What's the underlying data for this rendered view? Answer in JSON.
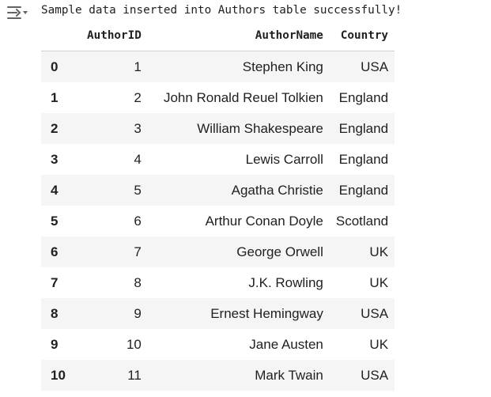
{
  "output": {
    "icon": "output-collapse-icon",
    "message": "Sample data inserted into Authors table successfully!"
  },
  "table": {
    "columns": [
      "AuthorID",
      "AuthorName",
      "Country"
    ],
    "rows": [
      {
        "index": "0",
        "AuthorID": "1",
        "AuthorName": "Stephen King",
        "Country": "USA"
      },
      {
        "index": "1",
        "AuthorID": "2",
        "AuthorName": "John Ronald Reuel Tolkien",
        "Country": "England"
      },
      {
        "index": "2",
        "AuthorID": "3",
        "AuthorName": "William Shakespeare",
        "Country": "England"
      },
      {
        "index": "3",
        "AuthorID": "4",
        "AuthorName": "Lewis Carroll",
        "Country": "England"
      },
      {
        "index": "4",
        "AuthorID": "5",
        "AuthorName": "Agatha Christie",
        "Country": "England"
      },
      {
        "index": "5",
        "AuthorID": "6",
        "AuthorName": "Arthur Conan Doyle",
        "Country": "Scotland"
      },
      {
        "index": "6",
        "AuthorID": "7",
        "AuthorName": "George Orwell",
        "Country": "UK"
      },
      {
        "index": "7",
        "AuthorID": "8",
        "AuthorName": "J.K. Rowling",
        "Country": "UK"
      },
      {
        "index": "8",
        "AuthorID": "9",
        "AuthorName": "Ernest Hemingway",
        "Country": "USA"
      },
      {
        "index": "9",
        "AuthorID": "10",
        "AuthorName": "Jane Austen",
        "Country": "UK"
      },
      {
        "index": "10",
        "AuthorID": "11",
        "AuthorName": "Mark Twain",
        "Country": "USA"
      }
    ]
  },
  "colors": {
    "row_stripe": "#f5f5f5",
    "text": "#212121",
    "icon": "#5f6368"
  }
}
